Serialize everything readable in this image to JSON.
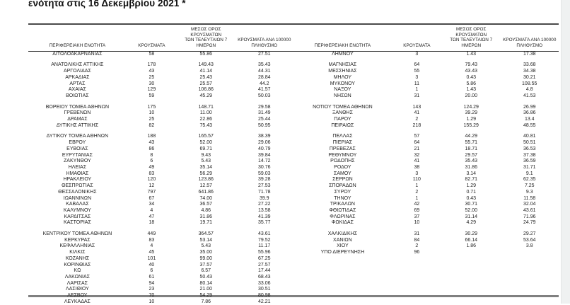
{
  "page": {
    "title": "ενότητα στις 16 Δεκεμβρίου 2021 *"
  },
  "table": {
    "headers": {
      "region": "ΠΕΡΙΦΕΡΕΙΑΚΗ ΕΝΟΤΗΤΑ",
      "cases": "ΚΡΟΥΣΜΑΤΑ",
      "avg7_line1": "ΜΕΣΟΣ ΟΡΟΣ ΚΡΟΥΣΜΑΤΩΝ",
      "avg7_line2": "ΤΩΝ ΤΕΛΕΥΤΑΙΩΝ 7 ΗΜΕΡΩΝ",
      "per100k_line1": "ΚΡΟΥΣΜΑΤΑ ΑΝΑ 100000",
      "per100k_line2": "ΠΛΗΘΥΣΜΟ"
    },
    "left_table": {
      "groups": [
        [
          [
            "ΑΙΤΩΛΟΑΚΑΡΝΑΝΙΑΣ",
            "58",
            "55.86",
            "27.51"
          ]
        ],
        [
          [
            "ΑΝΑΤΟΛΙΚΗΣ ΑΤΤΙΚΗΣ",
            "178",
            "149.43",
            "35.43"
          ],
          [
            "ΑΡΓΟΛΙΔΑΣ",
            "43",
            "41.14",
            "44.31"
          ],
          [
            "ΑΡΚΑΔΙΑΣ",
            "25",
            "25.43",
            "28.84"
          ],
          [
            "ΑΡΤΑΣ",
            "30",
            "25.57",
            "44.2"
          ],
          [
            "ΑΧΑΪΑΣ",
            "129",
            "106.86",
            "41.57"
          ],
          [
            "ΒΟΙΩΤΙΑΣ",
            "59",
            "45.29",
            "50.03"
          ]
        ],
        [
          [
            "ΒΟΡΕΙΟΥ ΤΟΜΕΑ ΑΘΗΝΩΝ",
            "175",
            "148.71",
            "29.58"
          ],
          [
            "ΓΡΕΒΕΝΩΝ",
            "10",
            "11.00",
            "31.49"
          ],
          [
            "ΔΡΑΜΑΣ",
            "25",
            "22.86",
            "25.44"
          ],
          [
            "ΔΥΤΙΚΗΣ ΑΤΤΙΚΗΣ",
            "82",
            "75.43",
            "50.95"
          ]
        ],
        [
          [
            "ΔΥΤΙΚΟΥ ΤΟΜΕΑ ΑΘΗΝΩΝ",
            "188",
            "165.57",
            "38.39"
          ],
          [
            "ΕΒΡΟΥ",
            "43",
            "52.00",
            "29.06"
          ],
          [
            "ΕΥΒΟΙΑΣ",
            "86",
            "69.71",
            "40.79"
          ],
          [
            "ΕΥΡΥΤΑΝΙΑΣ",
            "8",
            "9.43",
            "39.84"
          ],
          [
            "ΖΑΚΥΝΘΟΥ",
            "6",
            "5.43",
            "14.72"
          ],
          [
            "ΗΛΕΙΑΣ",
            "49",
            "35.14",
            "30.76"
          ],
          [
            "ΗΜΑΘΙΑΣ",
            "83",
            "56.29",
            "59.03"
          ],
          [
            "ΗΡΑΚΛΕΙΟΥ",
            "120",
            "123.86",
            "39.28"
          ],
          [
            "ΘΕΣΠΡΩΤΙΑΣ",
            "12",
            "12.57",
            "27.53"
          ],
          [
            "ΘΕΣΣΑΛΟΝΙΚΗΣ",
            "797",
            "641.86",
            "71.78"
          ],
          [
            "ΙΩΑΝΝΙΝΩΝ",
            "67",
            "74.00",
            "39.9"
          ],
          [
            "ΚΑΒΑΛΑΣ",
            "34",
            "36.57",
            "27.22"
          ],
          [
            "ΚΑΛΥΜΝΟΥ",
            "4",
            "4.86",
            "13.58"
          ],
          [
            "ΚΑΡΔΙΤΣΑΣ",
            "47",
            "31.86",
            "41.39"
          ],
          [
            "ΚΑΣΤΟΡΙΑΣ",
            "18",
            "19.71",
            "35.77"
          ]
        ],
        [
          [
            "ΚΕΝΤΡΙΚΟΥ ΤΟΜΕΑ ΑΘΗΝΩΝ",
            "449",
            "364.57",
            "43.61"
          ],
          [
            "ΚΕΡΚΥΡΑΣ",
            "83",
            "53.14",
            "79.52"
          ],
          [
            "ΚΕΦΑΛΛΗΝΙΑΣ",
            "4",
            "5.43",
            "11.17"
          ],
          [
            "ΚΙΛΚΙΣ",
            "45",
            "35.00",
            "55.96"
          ],
          [
            "ΚΟΖΑΝΗΣ",
            "101",
            "99.00",
            "67.25"
          ],
          [
            "ΚΟΡΙΝΘΙΑΣ",
            "40",
            "37.57",
            "27.57"
          ],
          [
            "ΚΩ",
            "6",
            "6.57",
            "17.44"
          ],
          [
            "ΛΑΚΩΝΙΑΣ",
            "61",
            "50.43",
            "68.43"
          ],
          [
            "ΛΑΡΙΣΑΣ",
            "94",
            "80.14",
            "33.06"
          ],
          [
            "ΛΑΣΙΘΙΟΥ",
            "23",
            "21.00",
            "30.51"
          ],
          [
            "ΛΕΣΒΟΥ",
            "70",
            "54.29",
            "80.98"
          ],
          [
            "ΛΕΥΚΑΔΑΣ",
            "10",
            "7.86",
            "42.21"
          ]
        ]
      ]
    },
    "right_table": {
      "groups": [
        [
          [
            "ΛΗΜΝΟΥ",
            "3",
            "1.43",
            "17.38"
          ]
        ],
        [
          [
            "ΜΑΓΝΗΣΙΑΣ",
            "64",
            "79.43",
            "33.68"
          ],
          [
            "ΜΕΣΣΗΝΙΑΣ",
            "55",
            "43.43",
            "34.38"
          ],
          [
            "ΜΗΛΟΥ",
            "3",
            "0.43",
            "30.21"
          ],
          [
            "ΜΥΚΟΝΟΥ",
            "11",
            "5.86",
            "108.55"
          ],
          [
            "ΝΑΞΟΥ",
            "1",
            "1.43",
            "4.8"
          ],
          [
            "ΝΗΣΩΝ",
            "31",
            "20.00",
            "41.53"
          ]
        ],
        [
          [
            "ΝΟΤΙΟΥ ΤΟΜΕΑ ΑΘΗΝΩΝ",
            "143",
            "124.29",
            "26.99"
          ],
          [
            "ΞΑΝΘΗΣ",
            "41",
            "39.29",
            "36.86"
          ],
          [
            "ΠΑΡΟΥ",
            "2",
            "1.29",
            "13.4"
          ],
          [
            "ΠΕΙΡΑΙΩΣ",
            "218",
            "155.29",
            "48.55"
          ]
        ],
        [
          [
            "ΠΕΛΛΑΣ",
            "57",
            "44.29",
            "40.81"
          ],
          [
            "ΠΙΕΡΙΑΣ",
            "64",
            "55.71",
            "50.51"
          ],
          [
            "ΠΡΕΒΕΖΑΣ",
            "21",
            "18.71",
            "36.53"
          ],
          [
            "ΡΕΘΥΜΝΟΥ",
            "32",
            "29.57",
            "37.38"
          ],
          [
            "ΡΟΔΟΠΗΣ",
            "41",
            "35.43",
            "36.59"
          ],
          [
            "ΡΟΔΟΥ",
            "38",
            "31.86",
            "31.71"
          ],
          [
            "ΣΑΜΟΥ",
            "3",
            "3.14",
            "9.1"
          ],
          [
            "ΣΕΡΡΩΝ",
            "110",
            "82.71",
            "62.35"
          ],
          [
            "ΣΠΟΡΑΔΩΝ",
            "1",
            "1.29",
            "7.25"
          ],
          [
            "ΣΥΡΟΥ",
            "2",
            "0.71",
            "9.3"
          ],
          [
            "ΤΗΝΟΥ",
            "1",
            "0.43",
            "11.58"
          ],
          [
            "ΤΡΙΚΑΛΩΝ",
            "42",
            "30.71",
            "32.04"
          ],
          [
            "ΦΘΙΩΤΙΔΑΣ",
            "69",
            "52.00",
            "43.61"
          ],
          [
            "ΦΛΩΡΙΝΑΣ",
            "37",
            "31.14",
            "71.96"
          ],
          [
            "ΦΩΚΙΔΑΣ",
            "10",
            "4.29",
            "24.79"
          ]
        ],
        [
          [
            "ΧΑΛΚΙΔΙΚΗΣ",
            "31",
            "30.29",
            "29.27"
          ],
          [
            "ΧΑΝΙΩΝ",
            "84",
            "66.14",
            "53.64"
          ],
          [
            "ΧΙΟΥ",
            "2",
            "1.86",
            "3.8"
          ],
          [
            "ΥΠΟ ΔΙΕΡΕΥΝΗΣΗ",
            "96",
            "",
            ""
          ]
        ]
      ]
    }
  }
}
